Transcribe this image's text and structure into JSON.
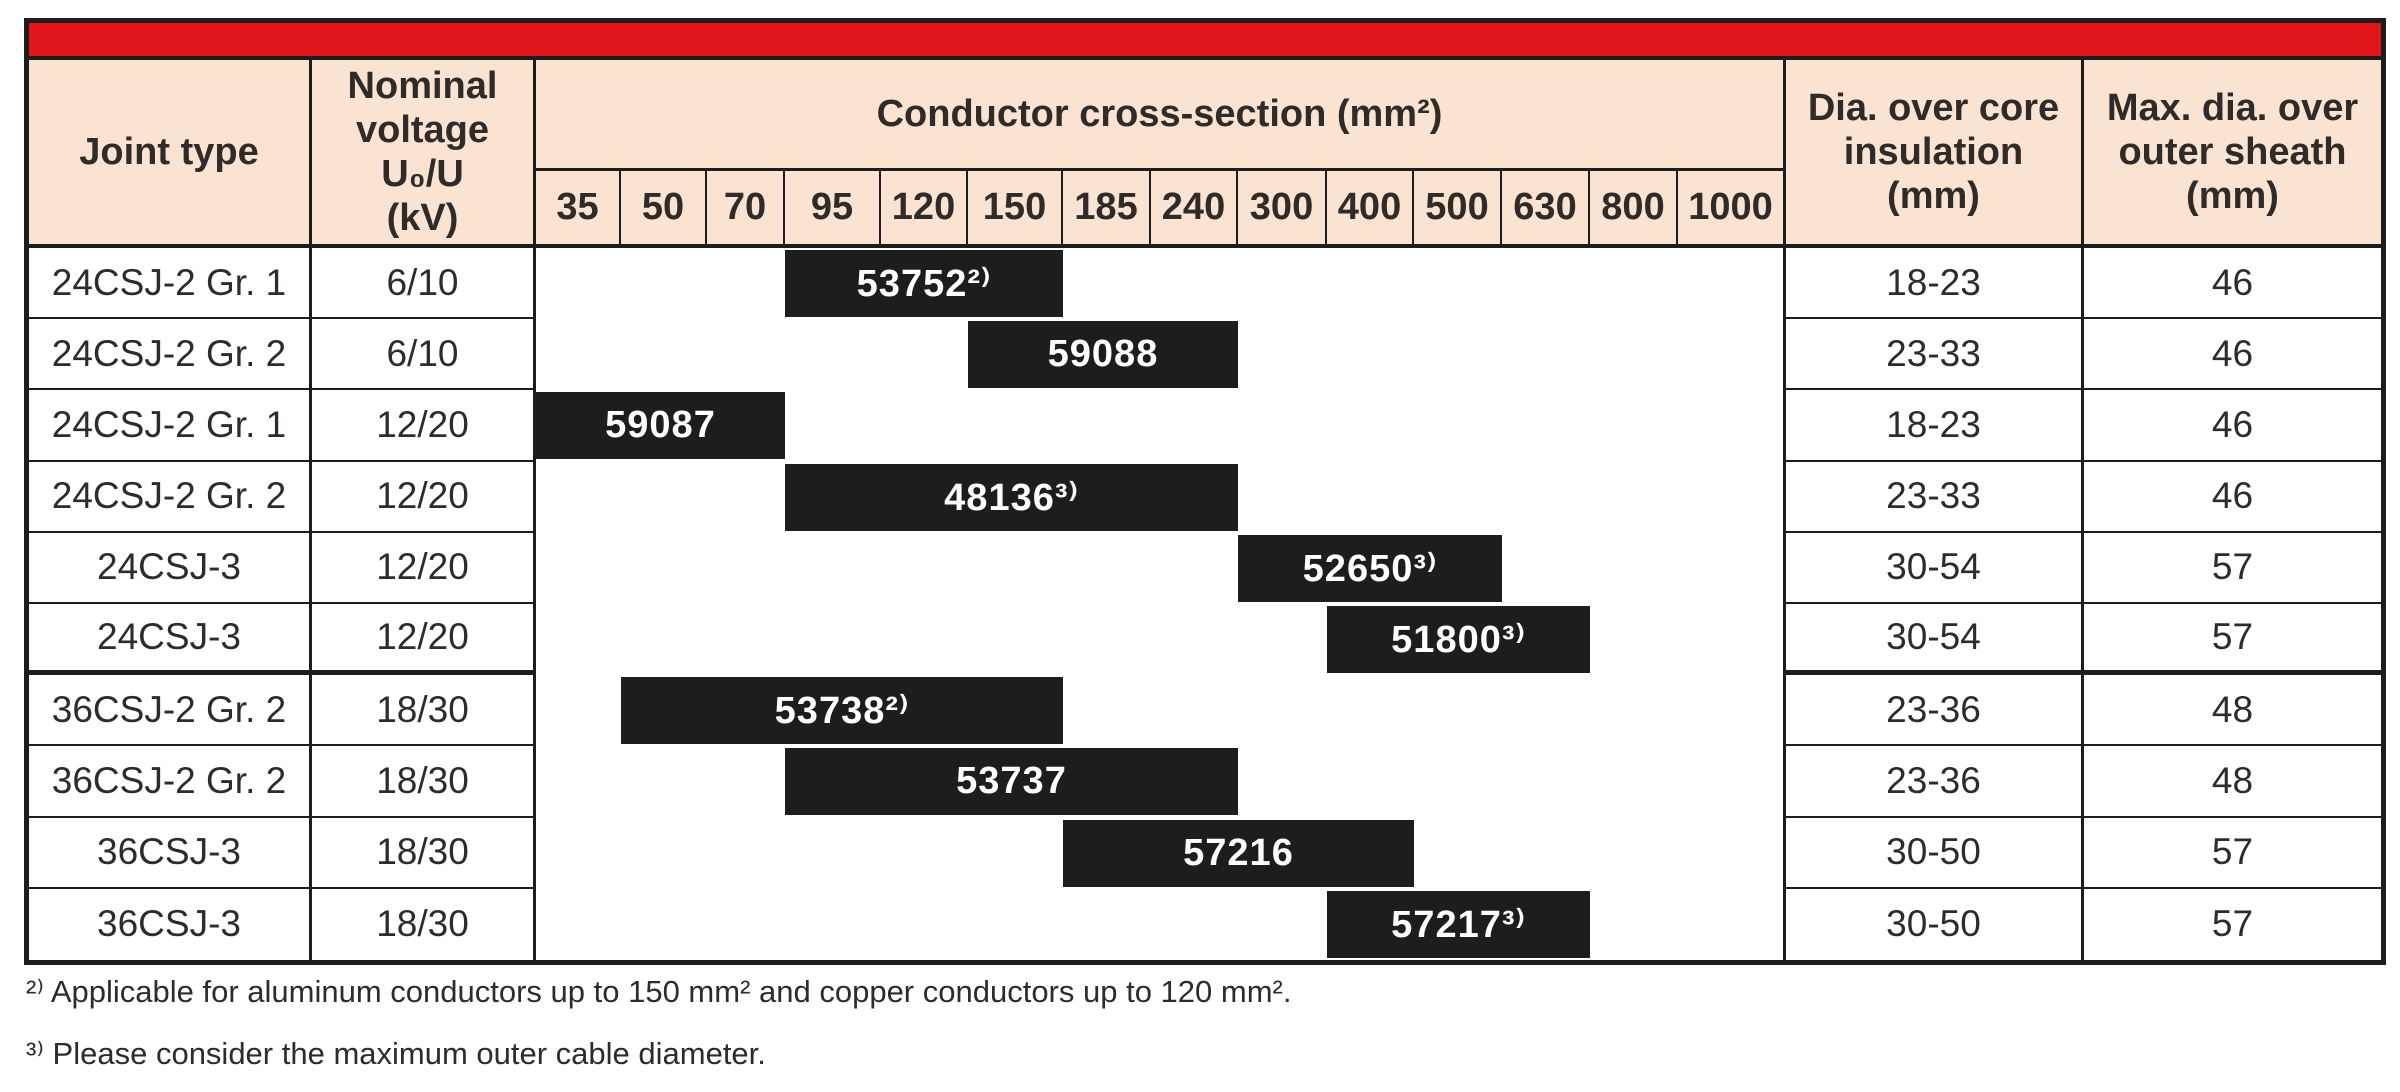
{
  "colors": {
    "accent_red": "#e2151b",
    "header_pink": "#fbe3d2",
    "bar_black": "#1d1d1b"
  },
  "table": {
    "header": {
      "joint_type_label": "Joint type",
      "nominal_voltage_label": "Nominal\nvoltage\nU₀/U\n(kV)",
      "conductor_label": "Conductor cross-section (mm²)",
      "cross_section_sizes": [
        "35",
        "50",
        "70",
        "95",
        "120",
        "150",
        "185",
        "240",
        "300",
        "400",
        "500",
        "630",
        "800",
        "1000"
      ],
      "dia_core_label": "Dia. over core\ninsulation\n(mm)",
      "dia_sheath_label": "Max. dia. over\nouter sheath\n(mm)"
    },
    "rows": [
      {
        "joint_type": "24CSJ-2 Gr. 1",
        "voltage": "6/10",
        "part": "53752²⁾",
        "from": "95",
        "to": "150",
        "dia_core": "18-23",
        "dia_sheath": "46"
      },
      {
        "joint_type": "24CSJ-2 Gr. 2",
        "voltage": "6/10",
        "part": "59088",
        "from": "150",
        "to": "240",
        "dia_core": "23-33",
        "dia_sheath": "46"
      },
      {
        "joint_type": "24CSJ-2 Gr. 1",
        "voltage": "12/20",
        "part": "59087",
        "from": "35",
        "to": "70",
        "dia_core": "18-23",
        "dia_sheath": "46"
      },
      {
        "joint_type": "24CSJ-2 Gr. 2",
        "voltage": "12/20",
        "part": "48136³⁾",
        "from": "95",
        "to": "240",
        "dia_core": "23-33",
        "dia_sheath": "46"
      },
      {
        "joint_type": "24CSJ-3",
        "voltage": "12/20",
        "part": "52650³⁾",
        "from": "300",
        "to": "500",
        "dia_core": "30-54",
        "dia_sheath": "57"
      },
      {
        "joint_type": "24CSJ-3",
        "voltage": "12/20",
        "part": "51800³⁾",
        "from": "400",
        "to": "630",
        "dia_core": "30-54",
        "dia_sheath": "57"
      },
      {
        "joint_type": "36CSJ-2 Gr. 2",
        "voltage": "18/30",
        "part": "53738²⁾",
        "from": "50",
        "to": "150",
        "dia_core": "23-36",
        "dia_sheath": "48"
      },
      {
        "joint_type": "36CSJ-2 Gr. 2",
        "voltage": "18/30",
        "part": "53737",
        "from": "95",
        "to": "240",
        "dia_core": "23-36",
        "dia_sheath": "48"
      },
      {
        "joint_type": "36CSJ-3",
        "voltage": "18/30",
        "part": "57216",
        "from": "185",
        "to": "400",
        "dia_core": "30-50",
        "dia_sheath": "57"
      },
      {
        "joint_type": "36CSJ-3",
        "voltage": "18/30",
        "part": "57217³⁾",
        "from": "400",
        "to": "630",
        "dia_core": "30-50",
        "dia_sheath": "57"
      }
    ],
    "group_separator_after_row": 6
  },
  "footnotes": [
    "²⁾ Applicable for aluminum conductors up to 150 mm² and copper conductors up to 120 mm².",
    "³⁾ Please consider the maximum outer cable diameter."
  ]
}
